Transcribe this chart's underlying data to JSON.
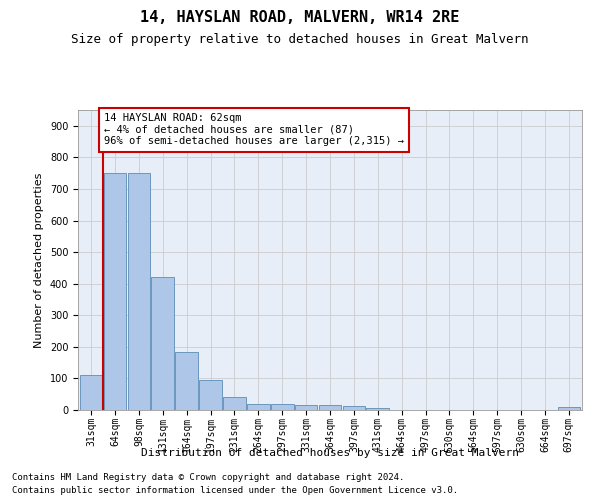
{
  "title": "14, HAYSLAN ROAD, MALVERN, WR14 2RE",
  "subtitle": "Size of property relative to detached houses in Great Malvern",
  "xlabel": "Distribution of detached houses by size in Great Malvern",
  "ylabel": "Number of detached properties",
  "bar_labels": [
    "31sqm",
    "64sqm",
    "98sqm",
    "131sqm",
    "164sqm",
    "197sqm",
    "231sqm",
    "264sqm",
    "297sqm",
    "331sqm",
    "364sqm",
    "397sqm",
    "431sqm",
    "464sqm",
    "497sqm",
    "530sqm",
    "564sqm",
    "597sqm",
    "630sqm",
    "664sqm",
    "697sqm"
  ],
  "bar_values": [
    110,
    750,
    750,
    420,
    185,
    95,
    40,
    18,
    20,
    17,
    17,
    13,
    7,
    0,
    0,
    0,
    0,
    0,
    0,
    0,
    8
  ],
  "bar_color": "#aec6e8",
  "bar_edgecolor": "#5b8db8",
  "annotation_text": "14 HAYSLAN ROAD: 62sqm\n← 4% of detached houses are smaller (87)\n96% of semi-detached houses are larger (2,315) →",
  "annotation_box_color": "#ffffff",
  "annotation_box_edgecolor": "#cc0000",
  "vline_color": "#cc0000",
  "ylim": [
    0,
    950
  ],
  "yticks": [
    0,
    100,
    200,
    300,
    400,
    500,
    600,
    700,
    800,
    900
  ],
  "grid_color": "#cccccc",
  "background_color": "#e8eef8",
  "footer_line1": "Contains HM Land Registry data © Crown copyright and database right 2024.",
  "footer_line2": "Contains public sector information licensed under the Open Government Licence v3.0.",
  "title_fontsize": 11,
  "subtitle_fontsize": 9,
  "axis_label_fontsize": 8,
  "tick_fontsize": 7,
  "annotation_fontsize": 7.5,
  "footer_fontsize": 6.5
}
